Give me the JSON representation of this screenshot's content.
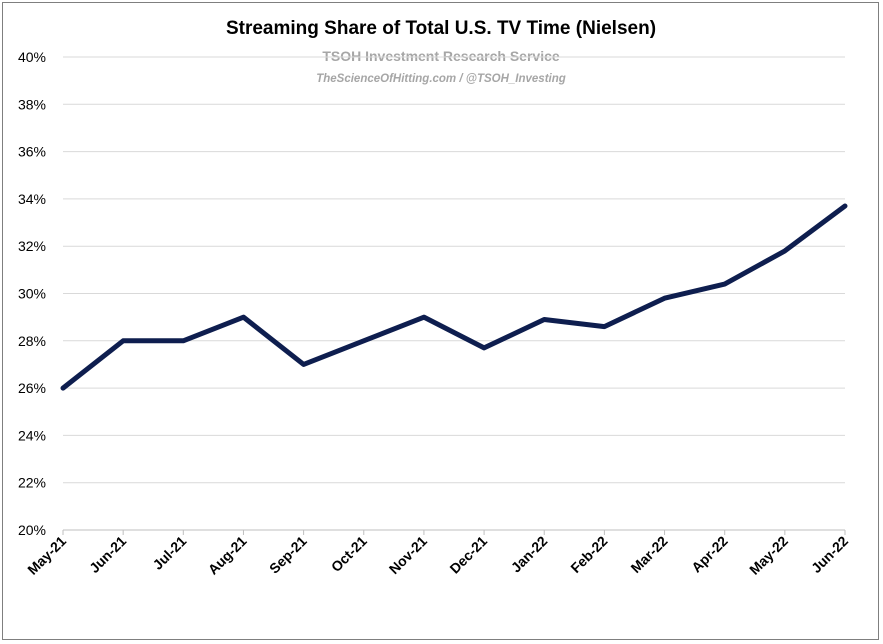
{
  "chart_data": {
    "type": "line",
    "title": "Streaming Share of Total U.S. TV Time (Nielsen)",
    "watermark": {
      "line1": "TSOH Investment Research Service",
      "line2": "TheScienceOfHitting.com / @TSOH_Investing"
    },
    "categories": [
      "May-21",
      "Jun-21",
      "Jul-21",
      "Aug-21",
      "Sep-21",
      "Oct-21",
      "Nov-21",
      "Dec-21",
      "Jan-22",
      "Feb-22",
      "Mar-22",
      "Apr-22",
      "May-22",
      "Jun-22"
    ],
    "series": [
      {
        "name": "",
        "values": [
          26.0,
          28.0,
          28.0,
          29.0,
          27.0,
          28.0,
          29.0,
          27.7,
          28.9,
          28.6,
          29.8,
          30.4,
          31.8,
          33.7
        ],
        "color": "#0e1e4f"
      }
    ],
    "ylim": [
      20,
      40
    ],
    "yticks": [
      20,
      22,
      24,
      26,
      28,
      30,
      32,
      34,
      36,
      38,
      40
    ],
    "ytick_format": "%",
    "xlabel": "",
    "ylabel": "",
    "grid": true,
    "gridColor": "#d9d9d9"
  }
}
